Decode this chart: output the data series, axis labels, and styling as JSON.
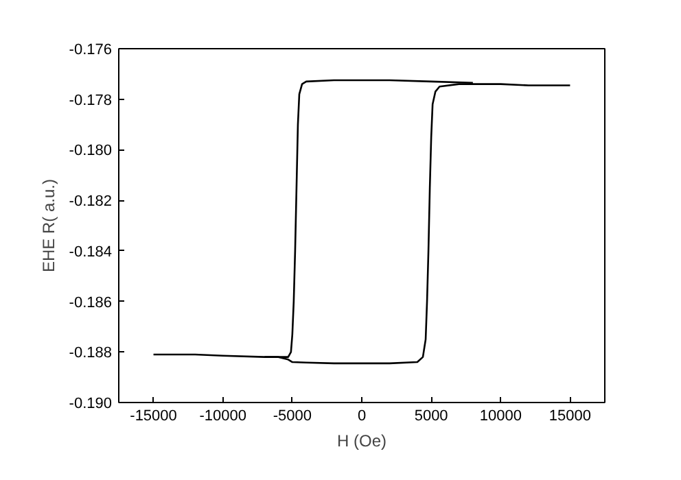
{
  "chart_data": {
    "type": "line",
    "xlabel": "H (Oe)",
    "ylabel": "EHE R( a.u.)",
    "series": [
      {
        "color": "#000000",
        "x": [
          -7000,
          -6000,
          -5300,
          -5100,
          -5000,
          -4900,
          -4800,
          -4700,
          -4600,
          -4500,
          -4300,
          -4000,
          -2000,
          0,
          2000,
          5000,
          8000
        ],
        "values": [
          -0.1882,
          -0.1882,
          -0.1882,
          -0.188,
          -0.1873,
          -0.186,
          -0.184,
          -0.1815,
          -0.179,
          -0.1778,
          -0.1774,
          -0.1773,
          -0.17725,
          -0.17725,
          -0.17725,
          -0.1773,
          -0.17735
        ]
      },
      {
        "color": "#000000",
        "x": [
          -15000,
          -12000,
          -10000,
          -7000,
          -6000,
          -5300,
          -5000,
          -4000,
          -2000,
          0,
          2000,
          4000,
          4400,
          4600,
          4700,
          4800,
          4900,
          5000,
          5100,
          5300,
          5600,
          7000,
          10000,
          12000,
          15000
        ],
        "values": [
          -0.1881,
          -0.1881,
          -0.18815,
          -0.1882,
          -0.1882,
          -0.1883,
          -0.1884,
          -0.18842,
          -0.18845,
          -0.18845,
          -0.18845,
          -0.1884,
          -0.1882,
          -0.1875,
          -0.186,
          -0.184,
          -0.1815,
          -0.1795,
          -0.1782,
          -0.1777,
          -0.1775,
          -0.1774,
          -0.1774,
          -0.17745,
          -0.17745
        ]
      }
    ],
    "xlim": [
      -17500,
      17500
    ],
    "xticks": [
      -15000,
      -10000,
      -5000,
      0,
      5000,
      10000,
      15000
    ],
    "ylim": [
      -0.19,
      -0.176
    ],
    "yticks": [
      {
        "value": -0.19,
        "label": "-0.190"
      },
      {
        "value": -0.188,
        "label": "-0.188"
      },
      {
        "value": -0.186,
        "label": "-0.186"
      },
      {
        "value": -0.184,
        "label": "-0.184"
      },
      {
        "value": -0.182,
        "label": "-0.182"
      },
      {
        "value": -0.18,
        "label": "-0.180"
      },
      {
        "value": -0.178,
        "label": "-0.178"
      },
      {
        "value": -0.176,
        "label": "-0.176"
      }
    ],
    "grid": false,
    "marker": "none",
    "line_style": "solid"
  }
}
